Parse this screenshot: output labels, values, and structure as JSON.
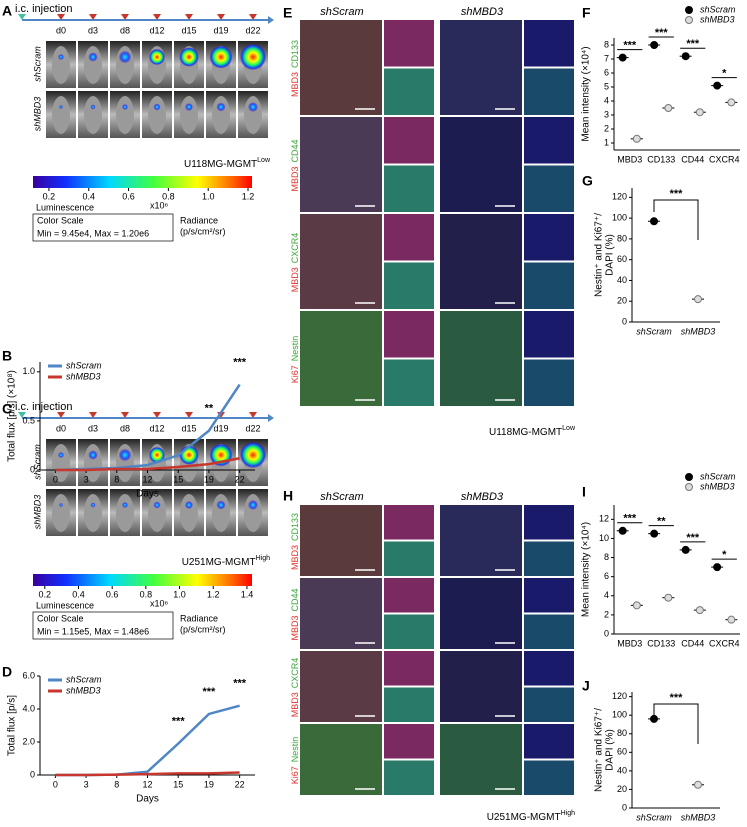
{
  "panel_labels": [
    "A",
    "B",
    "C",
    "D",
    "E",
    "F",
    "G",
    "H",
    "I",
    "J"
  ],
  "imaging": [
    {
      "injection": "i.c. injection",
      "days": [
        "d0",
        "d3",
        "d8",
        "d12",
        "d15",
        "d19",
        "d22"
      ],
      "groups": [
        "shScram",
        "shMBD3"
      ],
      "cell_line": "U118MG-MGMT",
      "cell_line_sup": "Low",
      "colorbar": {
        "range": [
          0.12,
          1.22
        ],
        "ticks": [
          0.2,
          0.4,
          0.6,
          0.8,
          {
            "value": 1,
            "label": "1.0"
          },
          1.2
        ],
        "exponent": "x10⁶",
        "title": "Luminescence",
        "scale_title": "Color Scale",
        "scale_range": "Min = 9.45e4, Max = 1.20e6",
        "unit": "Radiance",
        "unit2": "(p/s/cm²/sr)"
      }
    },
    {
      "injection": "i.c. injection",
      "days": [
        "d0",
        "d3",
        "d8",
        "d12",
        "d15",
        "d19",
        "d22"
      ],
      "groups": [
        "shScram",
        "shMBD3"
      ],
      "cell_line": "U251MG-MGMT",
      "cell_line_sup": "High",
      "colorbar": {
        "range": [
          0.13,
          1.43
        ],
        "ticks": [
          0.2,
          0.4,
          0.6,
          0.8,
          {
            "value": 1,
            "label": "1.0"
          },
          1.2,
          1.4
        ],
        "exponent": "x10⁶",
        "title": "Luminescence",
        "scale_title": "Color Scale",
        "scale_range": "Min = 1.15e5, Max = 1.48e6",
        "unit": "Radiance",
        "unit2": "(p/s/cm²/sr)"
      }
    }
  ],
  "staining": [
    {
      "groups": [
        "shScram",
        "shMBD3"
      ],
      "rows": [
        [
          "MBD3",
          "CD133"
        ],
        [
          "MBD3",
          "CD44"
        ],
        [
          "MBD3",
          "CXCR4"
        ],
        [
          "Ki67",
          "Nestin"
        ]
      ],
      "cell_line": "U118MG-MGMT",
      "cell_line_sup": "Low"
    },
    {
      "groups": [
        "shScram",
        "shMBD3"
      ],
      "rows": [
        [
          "MBD3",
          "CD133"
        ],
        [
          "MBD3",
          "CD44"
        ],
        [
          "MBD3",
          "CXCR4"
        ],
        [
          "Ki67",
          "Nestin"
        ]
      ],
      "cell_line": "U251MG-MGMT",
      "cell_line_sup": "High"
    }
  ],
  "chart_data": [
    {
      "type": "line",
      "categories": [
        "0",
        "3",
        "8",
        "12",
        "15",
        "19",
        "22"
      ],
      "xlabel": "Days",
      "ylabel": "Total flux [p/s] (×10⁸)",
      "series": [
        {
          "name": "shScram",
          "color": "#4f86c6",
          "values": [
            0,
            0.01,
            0.02,
            0.05,
            0.15,
            0.4,
            0.87
          ]
        },
        {
          "name": "shMBD3",
          "color": "#c8372d",
          "values": [
            0,
            0,
            0.01,
            0.01,
            0.03,
            0.06,
            0.12
          ]
        }
      ],
      "ylim": [
        0,
        1.1
      ],
      "yticks": [
        0,
        0.5,
        {
          "value": 1,
          "label": "1.0"
        }
      ],
      "significance": [
        null,
        null,
        null,
        null,
        null,
        "**",
        "***"
      ],
      "legend": "top-left"
    },
    {
      "type": "line",
      "categories": [
        "0",
        "3",
        "8",
        "12",
        "15",
        "19",
        "22"
      ],
      "xlabel": "Days",
      "ylabel": "Total flux [p/s]",
      "series": [
        {
          "name": "shScram",
          "color": "#4f86c6",
          "values": [
            0,
            0,
            0.02,
            0.2,
            1.9,
            3.7,
            4.2
          ]
        },
        {
          "name": "shMBD3",
          "color": "#c8372d",
          "values": [
            0,
            0,
            0.02,
            0.05,
            0.1,
            0.1,
            0.15
          ]
        }
      ],
      "ylim": [
        0,
        6
      ],
      "yticks": [
        0,
        {
          "value": 2,
          "label": "2.0"
        },
        {
          "value": 4,
          "label": "4.0"
        },
        {
          "value": 6,
          "label": "6.0"
        }
      ],
      "significance": [
        null,
        null,
        null,
        null,
        "***",
        "***",
        "***"
      ],
      "legend": "top-left"
    },
    {
      "type": "dot",
      "categories": [
        "MBD3",
        "CD133",
        "CD44",
        "CXCR4"
      ],
      "ylabel": "Mean intensity (×10⁴)",
      "series": [
        {
          "name": "shScram",
          "color": "#000000",
          "fill": "#000000",
          "values": [
            7.1,
            8.0,
            7.2,
            5.1
          ]
        },
        {
          "name": "shMBD3",
          "color": "#777777",
          "fill": "#dddddd",
          "values": [
            1.3,
            3.5,
            3.2,
            3.9
          ]
        }
      ],
      "ylim": [
        0.5,
        8.5
      ],
      "yticks": [
        1,
        2,
        3,
        4,
        5,
        6,
        7,
        8
      ],
      "significance": [
        "***",
        "***",
        "***",
        "*"
      ],
      "legend": "top-right"
    },
    {
      "type": "dot",
      "categories": [
        "shScram",
        "shMBD3"
      ],
      "ylabel": [
        "Nestin⁺ and Ki67⁺/",
        "DAPI (%)"
      ],
      "series": [
        {
          "color": "#000000",
          "fill": "#000000",
          "values": [
            97,
            null
          ]
        },
        {
          "color": "#777777",
          "fill": "#dddddd",
          "values": [
            null,
            22
          ]
        }
      ],
      "ylim": [
        0,
        129
      ],
      "yticks": [
        0,
        20,
        40,
        60,
        80,
        100,
        120
      ],
      "bracket": "***"
    },
    {
      "type": "dot",
      "categories": [
        "MBD3",
        "CD133",
        "CD44",
        "CXCR4"
      ],
      "ylabel": "Mean intensity (×10⁴)",
      "series": [
        {
          "name": "shScram",
          "color": "#000000",
          "fill": "#000000",
          "values": [
            10.8,
            10.5,
            8.8,
            7.0
          ]
        },
        {
          "name": "shMBD3",
          "color": "#777777",
          "fill": "#dddddd",
          "values": [
            3.0,
            3.8,
            2.5,
            1.5
          ]
        }
      ],
      "ylim": [
        0,
        13.5
      ],
      "yticks": [
        0,
        2,
        4,
        6,
        8,
        10,
        12
      ],
      "significance": [
        "***",
        "**",
        "***",
        "*"
      ],
      "legend": "top-right"
    },
    {
      "type": "dot",
      "categories": [
        "shScram",
        "shMBD3"
      ],
      "ylabel": [
        "Nestin⁺ and Ki67⁺/",
        "DAPI (%)"
      ],
      "series": [
        {
          "color": "#000000",
          "fill": "#000000",
          "values": [
            96,
            null
          ]
        },
        {
          "color": "#777777",
          "fill": "#dddddd",
          "values": [
            null,
            25
          ]
        }
      ],
      "ylim": [
        0,
        125
      ],
      "yticks": [
        0,
        20,
        40,
        60,
        80,
        100,
        120
      ],
      "bracket": "***"
    }
  ]
}
